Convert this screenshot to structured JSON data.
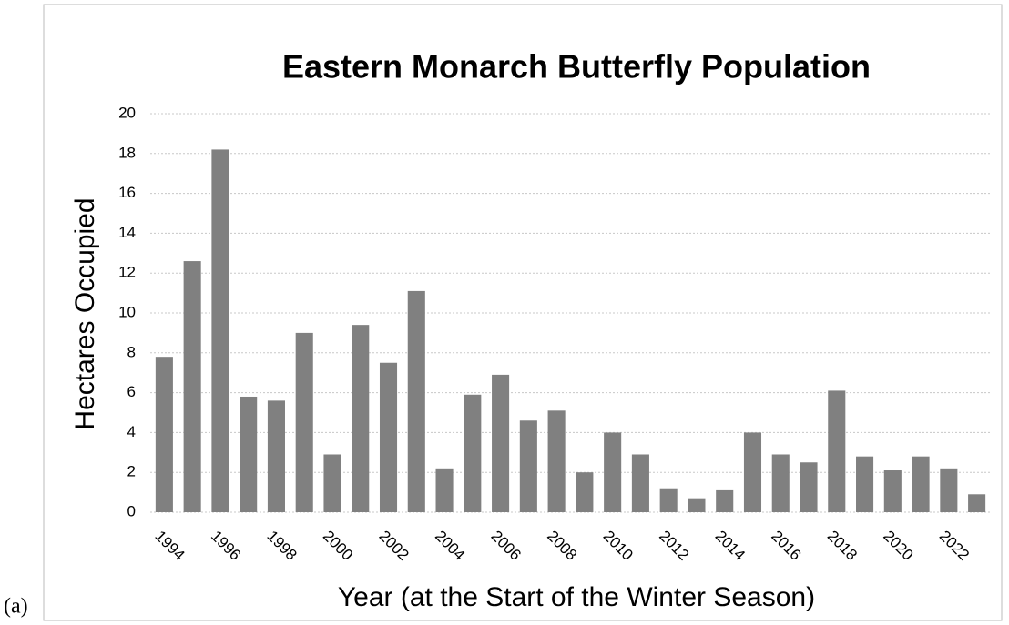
{
  "chart_data": {
    "type": "bar",
    "title": "Eastern Monarch Butterfly Population",
    "x_label": "Year (at the Start of the Winter Season)",
    "y_label": "Hectares Occupied",
    "panel_label": "(a)",
    "categories": [
      "1994",
      null,
      "1996",
      null,
      "1998",
      null,
      "2000",
      null,
      "2002",
      null,
      "2004",
      null,
      "2006",
      null,
      "2008",
      null,
      "2010",
      null,
      "2012",
      null,
      "2014",
      null,
      "2016",
      null,
      "2018",
      null,
      "2020",
      null,
      "2022",
      null
    ],
    "values": [
      7.8,
      12.6,
      18.2,
      5.8,
      5.6,
      9.0,
      2.9,
      9.4,
      7.5,
      11.1,
      2.2,
      5.9,
      6.9,
      4.6,
      5.1,
      2.0,
      4.0,
      2.9,
      1.2,
      0.7,
      1.1,
      4.0,
      2.9,
      2.5,
      6.1,
      2.8,
      2.1,
      2.8,
      2.2,
      0.9
    ],
    "color": "#808080",
    "ylim": [
      0,
      20
    ],
    "yticks": [
      0,
      2,
      4,
      6,
      8,
      10,
      12,
      14,
      16,
      18,
      20
    ],
    "grid": true
  }
}
